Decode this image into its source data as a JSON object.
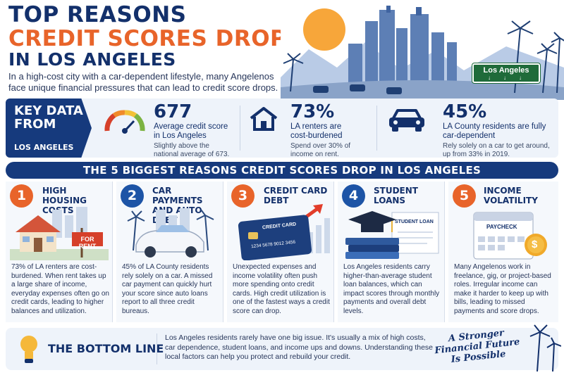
{
  "header": {
    "title_line1": "TOP REASONS",
    "title_line2": "CREDIT SCORES DROP",
    "title_line3": "IN LOS ANGELES",
    "intro": "In a high-cost city with a car-dependent lifestyle, many Angelenos face unique financial pressures that can lead to credit score drops.",
    "sign_text": "Los Angeles"
  },
  "key_data": {
    "label": "KEY DATA FROM",
    "sublabel": "LOS ANGELES",
    "stats": [
      {
        "value": "677",
        "label": "Average credit score in Los Angeles",
        "note": "Slightly above the national average of 673.",
        "icon": "speedometer-icon"
      },
      {
        "value": "73%",
        "label": "LA renters are cost-burdened",
        "note": "Spend over 30% of income on rent.",
        "icon": "house-icon"
      },
      {
        "value": "45%",
        "label": "LA County residents are fully car-dependent",
        "note": "Rely solely on a car to get around, up from 33% in 2019.",
        "icon": "car-icon"
      }
    ]
  },
  "banner": "THE 5 BIGGEST REASONS CREDIT SCORES DROP IN LOS ANGELES",
  "reasons": [
    {
      "num": "1",
      "title": "HIGH HOUSING COSTS",
      "body": "73% of LA renters are cost-burdened. When rent takes up a large share of income, everyday expenses often go on credit cards, leading to higher balances and utilization.",
      "art_text": "FOR RENT"
    },
    {
      "num": "2",
      "title": "CAR PAYMENTS AND AUTO DEBT",
      "body": "45% of LA County residents rely solely on a car. A missed car payment can quickly hurt your score since auto loans report to all three credit bureaus."
    },
    {
      "num": "3",
      "title": "CREDIT CARD DEBT",
      "body": "Unexpected expenses and income volatility often push more spending onto credit cards. High credit utilization is one of the fastest ways a credit score can drop.",
      "art_text": "CREDIT CARD",
      "art_number": "1234 5678 9012 3456"
    },
    {
      "num": "4",
      "title": "STUDENT LOANS",
      "body": "Los Angeles residents carry higher-than-average student loan balances, which can impact scores through monthly payments and overall debt levels.",
      "art_text": "STUDENT LOAN"
    },
    {
      "num": "5",
      "title": "INCOME VOLATILITY",
      "body": "Many Angelenos work in freelance, gig, or project-based roles. Irregular income can make it harder to keep up with bills, leading to missed payments and score drops.",
      "art_text": "PAYCHECK",
      "art_symbol": "$"
    }
  ],
  "bottom_line": {
    "title": "THE BOTTOM LINE",
    "body": "Los Angeles residents rarely have one big issue. It's usually a mix of high costs, car dependence, student loans, and income ups and downs. Understanding these local factors can help you protect and rebuild your credit.",
    "tagline": "A Stronger Financial Future Is Possible"
  },
  "colors": {
    "navy": "#13306b",
    "orange": "#e8642a",
    "blue": "#1d54a6",
    "panel": "#eef3fa"
  }
}
